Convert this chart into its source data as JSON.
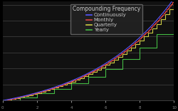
{
  "title": "Compounding Frequency",
  "legend_entries": [
    "Continuously",
    "Monthly",
    "Quarterly",
    "Yearly"
  ],
  "principal": 1.0,
  "rate": 0.2,
  "years": 10,
  "background_color": "#000000",
  "plot_bg_color": "#111111",
  "line_colors": {
    "continuous": "#5555ff",
    "monthly": "#dd4444",
    "quarterly": "#cccc44",
    "yearly": "#44bb44"
  },
  "grid_color": "#444444",
  "xlim": [
    0,
    10
  ],
  "ylim": [
    1.0,
    7.2
  ],
  "legend_fontsize": 5.0,
  "title_fontsize": 5.5,
  "legend_text_color": "#cccccc",
  "legend_bg_color": "#222222",
  "legend_edge_color": "#666666"
}
